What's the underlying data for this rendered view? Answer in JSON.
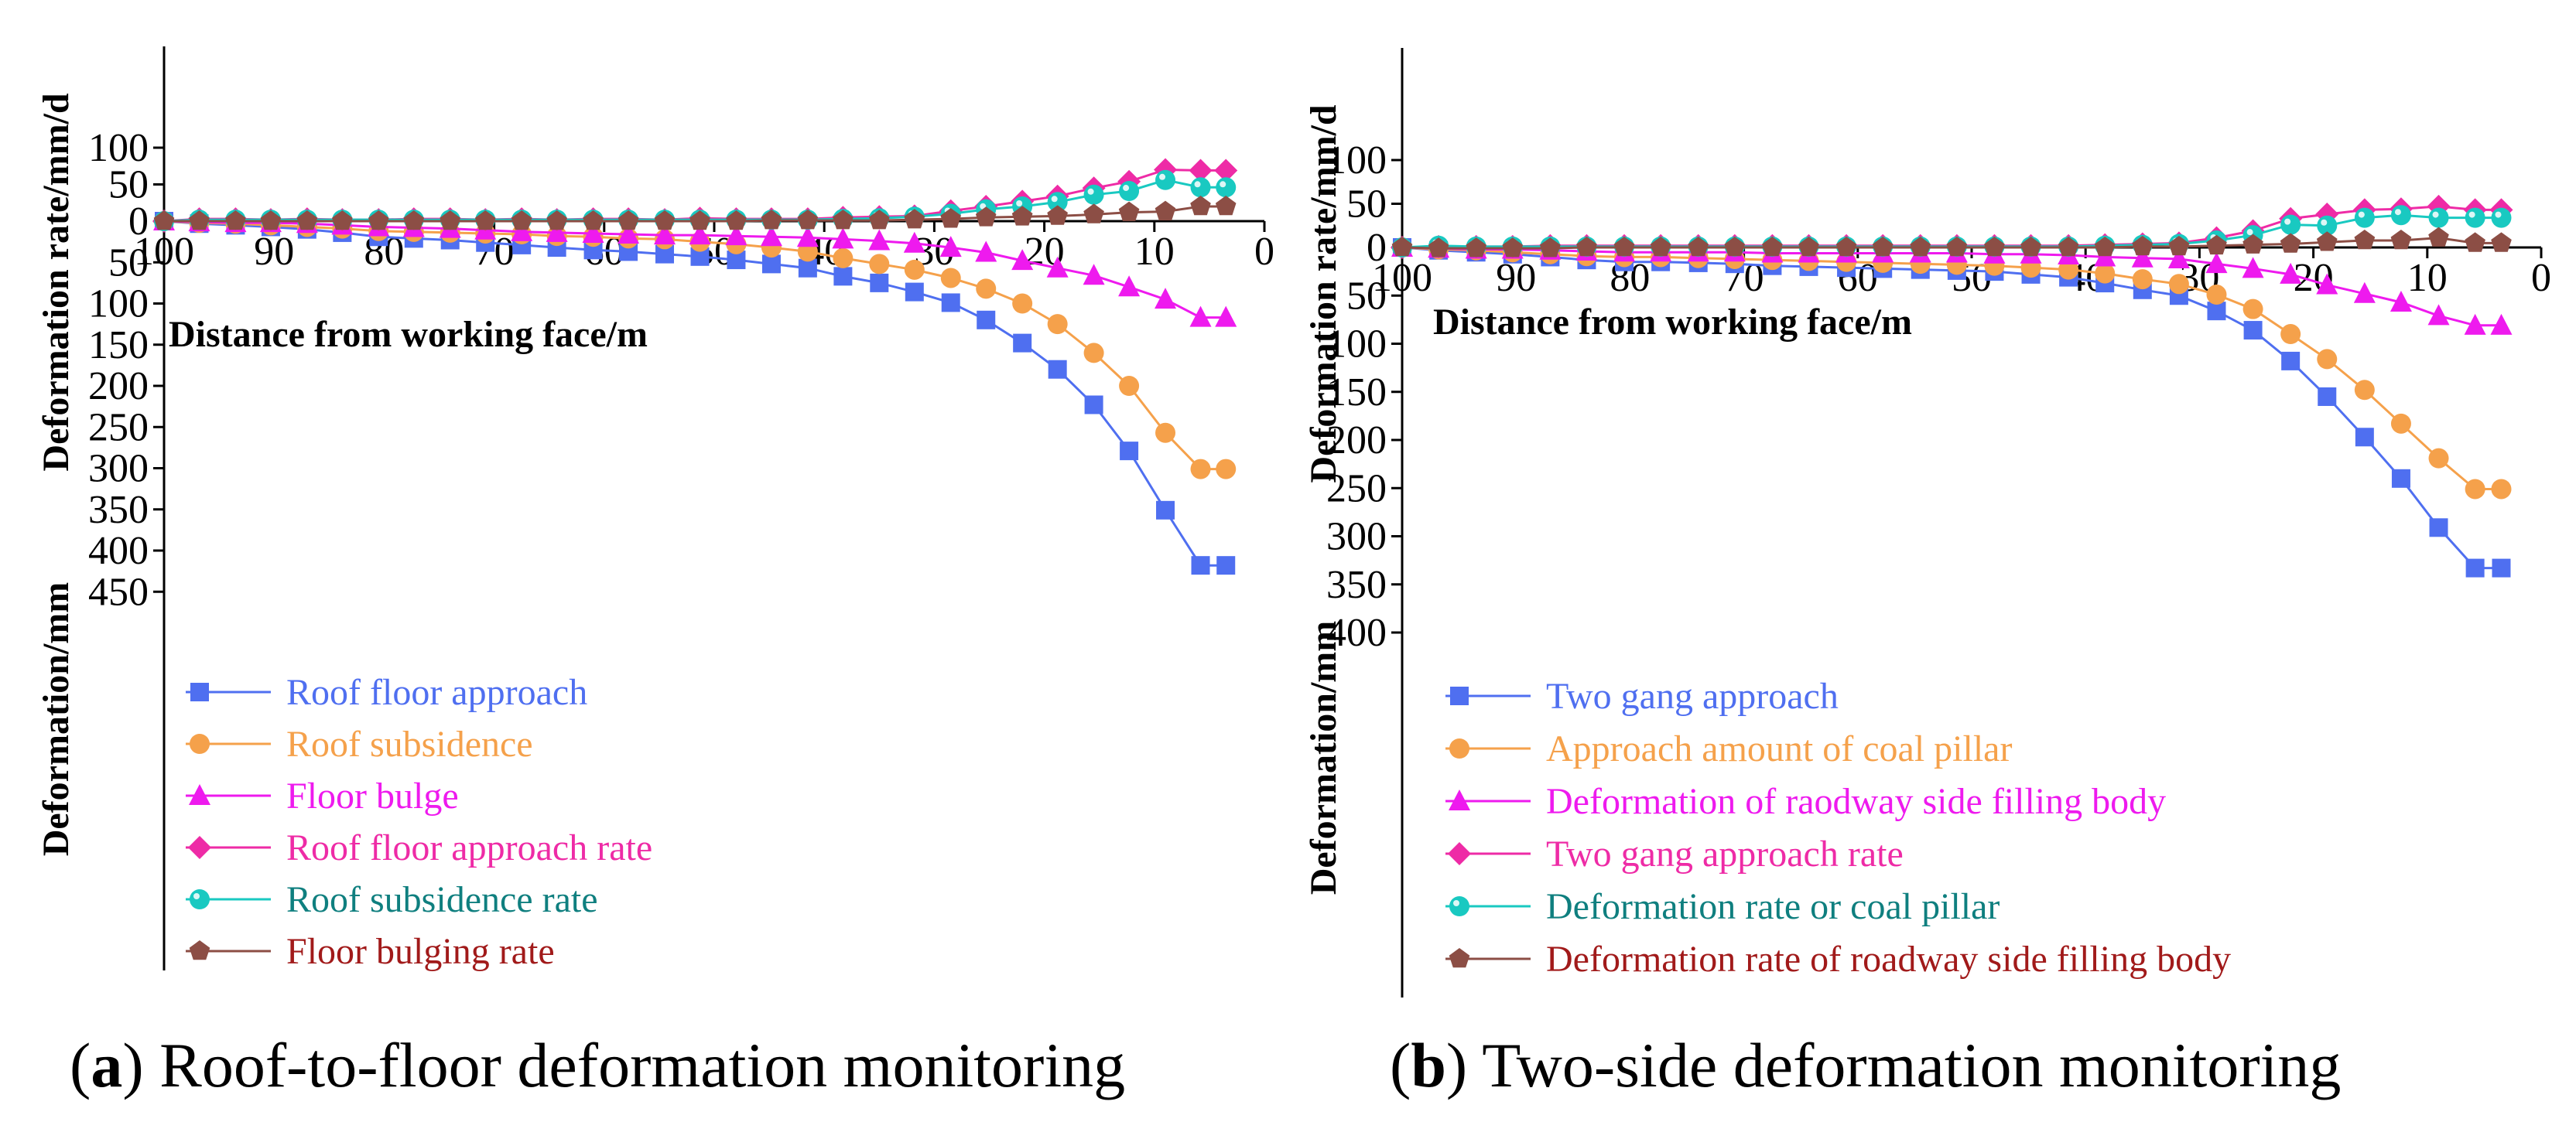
{
  "colors": {
    "roof_floor": "#4f6ff0",
    "roof_subsidence": "#f5a14b",
    "floor_bulge": "#ee1aee",
    "approach_rate": "#ee2ba6",
    "subsidence_rate": "#19c9c1",
    "bulging_rate": "#8c4e45",
    "legend_text_rate_b": "#0f7f7f",
    "legend_text_bulging_rate_b": "#a11a1a",
    "legend_text_subsidence_rate_a": "#0f7f7f",
    "legend_text_bulging_rate_a": "#a11a1a"
  },
  "chart_data": [
    {
      "type": "line",
      "caption_letter": "a",
      "caption_text": " Roof-to-floor deformation monitoring",
      "xlabel": "Distance from working face/m",
      "ylabel_top": "Deformation rate/mm/d",
      "ylabel_bottom": "Deformation/mm",
      "xlim": [
        100,
        0
      ],
      "x_ticks": [
        "100",
        "90",
        "80",
        "70",
        "60",
        "50",
        "40",
        "30",
        "20",
        "10",
        "0"
      ],
      "y_top_ticks": [
        "100",
        "50",
        "0"
      ],
      "y_bottom_ticks": [
        "50",
        "100",
        "150",
        "200",
        "250",
        "300",
        "350",
        "400",
        "450"
      ],
      "x": [
        100,
        96.8,
        93.5,
        90.3,
        87,
        83.8,
        80.5,
        77.3,
        74,
        70.8,
        67.5,
        64.3,
        61,
        57.8,
        54.5,
        51.3,
        48,
        44.8,
        41.5,
        38.3,
        35,
        31.8,
        28.5,
        25.3,
        22,
        18.8,
        15.5,
        12.3,
        9,
        5.8,
        3.5
      ],
      "series": [
        {
          "name": " Roof floor approach",
          "marker": "square",
          "group": "deformation",
          "color_key": "roof_floor",
          "label_color_key": "roof_floor",
          "values": [
            0,
            3,
            5,
            7,
            10,
            14,
            19,
            21,
            23,
            26,
            29,
            32,
            35,
            37,
            40,
            43,
            47,
            52,
            57,
            67,
            75,
            86,
            99,
            120,
            148,
            180,
            223,
            279,
            351,
            418,
            418
          ]
        },
        {
          "name": "Roof subsidence",
          "marker": "circle",
          "group": "deformation",
          "color_key": "roof_subsidence",
          "label_color_key": "roof_subsidence",
          "values": [
            0,
            2,
            3,
            5,
            7,
            9,
            12,
            13,
            14,
            15,
            16,
            18,
            19,
            21,
            22,
            25,
            28,
            32,
            37,
            45,
            52,
            59,
            69,
            82,
            100,
            125,
            160,
            200,
            257,
            301,
            301
          ]
        },
        {
          "name": "Floor bulge",
          "marker": "triangle",
          "group": "deformation",
          "color_key": "floor_bulge",
          "label_color_key": "floor_bulge",
          "values": [
            0,
            1,
            2,
            2,
            3,
            5,
            7,
            8,
            9,
            11,
            13,
            14,
            15,
            16,
            17,
            17,
            18,
            19,
            20,
            22,
            24,
            27,
            32,
            38,
            48,
            57,
            66,
            80,
            95,
            117,
            117
          ]
        },
        {
          "name": "Roof floor approach rate",
          "marker": "diamond",
          "group": "rate",
          "color_key": "approach_rate",
          "label_color_key": "approach_rate",
          "values": [
            0,
            3,
            3,
            2,
            3,
            2,
            2,
            3,
            3,
            2,
            3,
            2,
            3,
            3,
            2,
            4,
            3,
            3,
            3,
            5,
            6,
            7,
            14,
            20,
            27,
            34,
            45,
            54,
            70,
            69,
            69
          ]
        },
        {
          "name": "Roof subsidence rate",
          "marker": "dot",
          "group": "rate",
          "color_key": "subsidence_rate",
          "label_color_key": "legend_text_subsidence_rate_a",
          "values": [
            0,
            2,
            2,
            2,
            2,
            2,
            2,
            2,
            2,
            2,
            2,
            2,
            2,
            2,
            2,
            2,
            2,
            2,
            2,
            3,
            4,
            6,
            10,
            16,
            20,
            26,
            36,
            41,
            56,
            46,
            46
          ]
        },
        {
          "name": "Floor bulging rate",
          "marker": "pentagon",
          "group": "rate",
          "color_key": "bulging_rate",
          "label_color_key": "legend_text_bulging_rate_a",
          "values": [
            0,
            0,
            0,
            0,
            0,
            0,
            0,
            0,
            0,
            0,
            0,
            0,
            0,
            0,
            0,
            0,
            0,
            1,
            1,
            1,
            1,
            2,
            3,
            5,
            6,
            7,
            9,
            12,
            13,
            20,
            20
          ]
        }
      ]
    },
    {
      "type": "line",
      "caption_letter": "b",
      "caption_text": " Two-side deformation monitoring",
      "xlabel": "Distance from working face/m",
      "ylabel_top": "Deformation rate/mm/d",
      "ylabel_bottom": "Deformation/mm",
      "xlim": [
        100,
        0
      ],
      "x_ticks": [
        "100",
        "90",
        "80",
        "70",
        "60",
        "50",
        "40",
        "30",
        "20",
        "10",
        "0"
      ],
      "y_top_ticks": [
        "100",
        "50",
        "0"
      ],
      "y_bottom_ticks": [
        "50",
        "100",
        "150",
        "200",
        "250",
        "300",
        "350",
        "400"
      ],
      "x": [
        100,
        96.8,
        93.5,
        90.3,
        87,
        83.8,
        80.5,
        77.3,
        74,
        70.8,
        67.5,
        64.3,
        61,
        57.8,
        54.5,
        51.3,
        48,
        44.8,
        41.5,
        38.3,
        35,
        31.8,
        28.5,
        25.3,
        22,
        18.8,
        15.5,
        12.3,
        9,
        5.8,
        3.5
      ],
      "series": [
        {
          "name": " Two gang approach",
          "marker": "square",
          "group": "deformation",
          "color_key": "roof_floor",
          "label_color_key": "roof_floor",
          "values": [
            0,
            3,
            5,
            7,
            10,
            13,
            15,
            15,
            16,
            17,
            19,
            20,
            21,
            22,
            23,
            24,
            25,
            28,
            31,
            37,
            44,
            50,
            66,
            86,
            118,
            155,
            197,
            240,
            291,
            333,
            333
          ]
        },
        {
          "name": "Approach amount of coal pillar",
          "marker": "circle",
          "group": "deformation",
          "color_key": "roof_subsidence",
          "label_color_key": "roof_subsidence",
          "values": [
            0,
            2,
            3,
            5,
            7,
            9,
            10,
            10,
            11,
            12,
            13,
            14,
            15,
            16,
            17,
            18,
            19,
            21,
            23,
            27,
            33,
            38,
            49,
            64,
            90,
            116,
            148,
            183,
            219,
            251,
            251
          ]
        },
        {
          "name": "Deformation of raodway side filling body",
          "marker": "triangle",
          "group": "deformation",
          "color_key": "floor_bulge",
          "label_color_key": "floor_bulge",
          "values": [
            0,
            1,
            2,
            2,
            3,
            4,
            5,
            5,
            5,
            5,
            6,
            6,
            6,
            6,
            6,
            6,
            7,
            7,
            8,
            10,
            11,
            12,
            17,
            22,
            28,
            39,
            48,
            57,
            71,
            81,
            81
          ]
        },
        {
          "name": "Two gang approach rate",
          "marker": "diamond",
          "group": "rate",
          "color_key": "approach_rate",
          "label_color_key": "approach_rate",
          "values": [
            0,
            1,
            1,
            1,
            2,
            2,
            2,
            2,
            2,
            2,
            2,
            2,
            2,
            2,
            2,
            2,
            2,
            2,
            2,
            3,
            4,
            5,
            11,
            19,
            33,
            38,
            43,
            44,
            47,
            43,
            43
          ]
        },
        {
          "name": "Deformation rate or coal pillar",
          "marker": "dot",
          "group": "rate",
          "color_key": "subsidence_rate",
          "label_color_key": "legend_text_rate_b",
          "values": [
            0,
            2,
            1,
            1,
            1,
            1,
            1,
            1,
            1,
            1,
            1,
            1,
            1,
            1,
            1,
            1,
            1,
            1,
            1,
            2,
            3,
            4,
            8,
            14,
            26,
            25,
            34,
            37,
            34,
            34,
            34
          ]
        },
        {
          "name": "Deformation rate of roadway side filling body",
          "marker": "pentagon",
          "group": "rate",
          "color_key": "bulging_rate",
          "label_color_key": "legend_text_bulging_rate_b",
          "values": [
            0,
            -1,
            -1,
            -1,
            -1,
            0,
            0,
            0,
            0,
            0,
            0,
            0,
            0,
            0,
            0,
            0,
            0,
            0,
            0,
            0,
            1,
            1,
            2,
            3,
            4,
            6,
            8,
            8,
            11,
            5,
            5
          ]
        }
      ]
    }
  ]
}
